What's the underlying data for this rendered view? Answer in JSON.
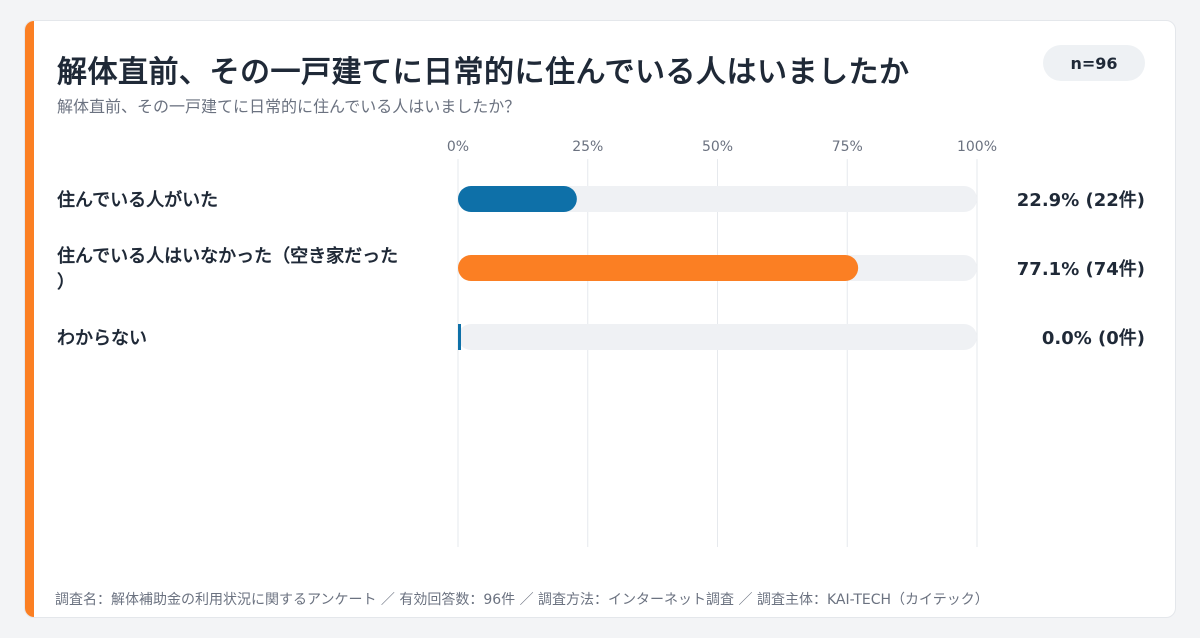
{
  "title": "解体直前、その一戸建てに日常的に住んでいる人はいましたか",
  "subtitle": "解体直前、その一戸建てに日常的に住んでいる人はいましたか？",
  "sample_badge": "n=96",
  "footer": "調査名：解体補助金の利用状況に関するアンケート ／ 有効回答数：96件 ／ 調査方法：インターネット調査 ／ 調査主体：KAI-TECH（カイテック）",
  "colors": {
    "accent": "#fb7f23",
    "track": "#eff1f4",
    "grid": "#e6e9ed",
    "text": "#1f2937",
    "muted": "#6b7280"
  },
  "chart_data": {
    "type": "bar",
    "orientation": "horizontal",
    "categories": [
      "住んでいる人がいた",
      "住んでいる人はいなかった（空き家だった）",
      "わからない"
    ],
    "category_lines": [
      [
        "住んでいる人がいた"
      ],
      [
        "住んでいる人はいなかった（空き家だった",
        "）"
      ],
      [
        "わからない"
      ]
    ],
    "values": [
      22.9,
      77.1,
      0.0
    ],
    "counts": [
      22,
      74,
      0
    ],
    "value_labels": [
      "22.9% (22件)",
      "77.1% (74件)",
      "0.0% (0件)"
    ],
    "bar_colors": [
      "#0e70a8",
      "#fb7f23",
      "#0e70a8"
    ],
    "ticks": [
      0,
      25,
      50,
      75,
      100
    ],
    "tick_labels": [
      "0%",
      "25%",
      "50%",
      "75%",
      "100%"
    ],
    "xlim": [
      0,
      100
    ],
    "grid": true,
    "legend": "none"
  }
}
